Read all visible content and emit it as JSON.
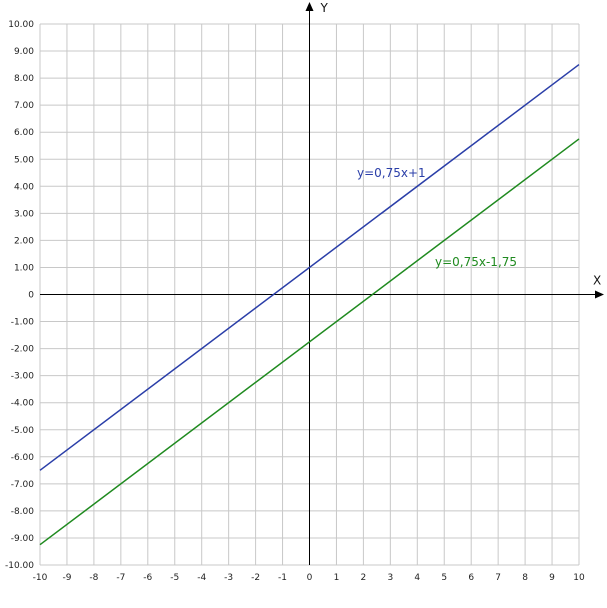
{
  "chart_data": {
    "type": "line",
    "xlabel": "X",
    "ylabel": "Y",
    "xlim": [
      -10,
      10
    ],
    "ylim": [
      -10,
      10
    ],
    "grid": true,
    "x_ticks": [
      "-10",
      "-9",
      "-8",
      "-7",
      "-6",
      "-5",
      "-4",
      "-3",
      "-2",
      "-1",
      "0",
      "1",
      "2",
      "3",
      "4",
      "5",
      "6",
      "7",
      "8",
      "9",
      "10"
    ],
    "y_ticks": [
      "10.00",
      "9.00",
      "8.00",
      "7.00",
      "6.00",
      "5.00",
      "4.00",
      "3.00",
      "2.00",
      "1.00",
      "0",
      "-1.00",
      "-2.00",
      "-3.00",
      "-4.00",
      "-5.00",
      "-6.00",
      "-7.00",
      "-8.00",
      "-9.00",
      "-10.00"
    ],
    "series": [
      {
        "name": "y=0,75x+1",
        "color": "#2a3ea8",
        "x": [
          -10,
          10
        ],
        "y": [
          -6.5,
          8.5
        ]
      },
      {
        "name": "y=0,75x-1,75",
        "color": "#1f8a1f",
        "x": [
          -10,
          10
        ],
        "y": [
          -9.25,
          5.75
        ]
      }
    ]
  }
}
